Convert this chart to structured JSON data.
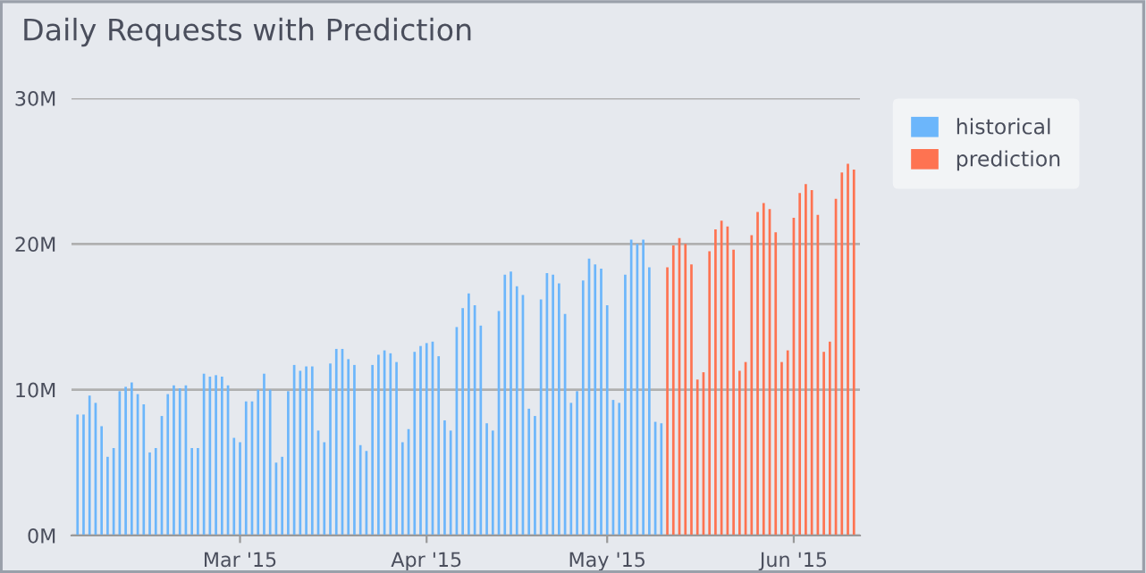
{
  "chart_data": {
    "type": "bar",
    "title": "Daily Requests with Prediction",
    "series": [
      {
        "name": "historical",
        "color": "#6cb6fb",
        "x": [
          "2015-02-02",
          "2015-02-03",
          "2015-02-04",
          "2015-02-05",
          "2015-02-06",
          "2015-02-07",
          "2015-02-08",
          "2015-02-09",
          "2015-02-10",
          "2015-02-11",
          "2015-02-12",
          "2015-02-13",
          "2015-02-14",
          "2015-02-15",
          "2015-02-16",
          "2015-02-17",
          "2015-02-18",
          "2015-02-19",
          "2015-02-20",
          "2015-02-21",
          "2015-02-22",
          "2015-02-23",
          "2015-02-24",
          "2015-02-25",
          "2015-02-26",
          "2015-02-27",
          "2015-02-28",
          "2015-03-01",
          "2015-03-02",
          "2015-03-03",
          "2015-03-04",
          "2015-03-05",
          "2015-03-06",
          "2015-03-07",
          "2015-03-08",
          "2015-03-09",
          "2015-03-10",
          "2015-03-11",
          "2015-03-12",
          "2015-03-13",
          "2015-03-14",
          "2015-03-15",
          "2015-03-16",
          "2015-03-17",
          "2015-03-18",
          "2015-03-19",
          "2015-03-20",
          "2015-03-21",
          "2015-03-22",
          "2015-03-23",
          "2015-03-24",
          "2015-03-25",
          "2015-03-26",
          "2015-03-27",
          "2015-03-28",
          "2015-03-29",
          "2015-03-30",
          "2015-03-31",
          "2015-04-01",
          "2015-04-02",
          "2015-04-03",
          "2015-04-04",
          "2015-04-05",
          "2015-04-06",
          "2015-04-07",
          "2015-04-08",
          "2015-04-09",
          "2015-04-10",
          "2015-04-11",
          "2015-04-12",
          "2015-04-13",
          "2015-04-14",
          "2015-04-15",
          "2015-04-16",
          "2015-04-17",
          "2015-04-18",
          "2015-04-19",
          "2015-04-20",
          "2015-04-21",
          "2015-04-22",
          "2015-04-23",
          "2015-04-24",
          "2015-04-25",
          "2015-04-26",
          "2015-04-27",
          "2015-04-28",
          "2015-04-29",
          "2015-04-30",
          "2015-05-01",
          "2015-05-02",
          "2015-05-03",
          "2015-05-04",
          "2015-05-05",
          "2015-05-06",
          "2015-05-07",
          "2015-05-08",
          "2015-05-09",
          "2015-05-10"
        ],
        "values": [
          8.3,
          8.3,
          9.6,
          9.1,
          7.5,
          5.4,
          6.0,
          9.9,
          10.2,
          10.5,
          9.7,
          9.0,
          5.7,
          6.0,
          8.2,
          9.7,
          10.3,
          10.1,
          10.3,
          6.0,
          6.0,
          11.1,
          10.9,
          11.0,
          10.9,
          10.3,
          6.7,
          6.4,
          9.2,
          9.2,
          10.0,
          11.1,
          10.0,
          5.0,
          5.4,
          9.9,
          11.7,
          11.3,
          11.6,
          11.6,
          7.2,
          6.4,
          11.8,
          12.8,
          12.8,
          12.1,
          11.7,
          6.2,
          5.8,
          11.7,
          12.4,
          12.7,
          12.5,
          11.9,
          6.4,
          7.3,
          12.6,
          13.0,
          13.2,
          13.3,
          12.3,
          7.9,
          7.2,
          14.3,
          15.6,
          16.6,
          15.8,
          14.4,
          7.7,
          7.2,
          15.4,
          17.9,
          18.1,
          17.1,
          16.5,
          8.7,
          8.2,
          16.2,
          18.0,
          17.9,
          17.3,
          15.2,
          9.1,
          9.9,
          17.5,
          19.0,
          18.6,
          18.3,
          15.8,
          9.3,
          9.1,
          17.9,
          20.3,
          20.0,
          20.3,
          18.4,
          7.8,
          7.7
        ]
      },
      {
        "name": "prediction",
        "color": "#fe7351",
        "x": [
          "2015-05-11",
          "2015-05-12",
          "2015-05-13",
          "2015-05-14",
          "2015-05-15",
          "2015-05-16",
          "2015-05-17",
          "2015-05-18",
          "2015-05-19",
          "2015-05-20",
          "2015-05-21",
          "2015-05-22",
          "2015-05-23",
          "2015-05-24",
          "2015-05-25",
          "2015-05-26",
          "2015-05-27",
          "2015-05-28",
          "2015-05-29",
          "2015-05-30",
          "2015-05-31",
          "2015-06-01",
          "2015-06-02",
          "2015-06-03",
          "2015-06-04",
          "2015-06-05",
          "2015-06-06",
          "2015-06-07",
          "2015-06-08",
          "2015-06-09",
          "2015-06-10",
          "2015-06-11"
        ],
        "values": [
          18.4,
          19.9,
          20.4,
          20.0,
          18.6,
          10.7,
          11.2,
          19.5,
          21.0,
          21.6,
          21.2,
          19.6,
          11.3,
          11.9,
          20.6,
          22.2,
          22.8,
          22.4,
          20.8,
          11.9,
          12.7,
          21.8,
          23.5,
          24.1,
          23.7,
          22.0,
          12.6,
          13.3,
          23.1,
          24.9,
          25.5,
          25.1
        ]
      }
    ],
    "xlim": [
      "2015-02-01",
      "2015-06-12"
    ],
    "xticks": [
      {
        "value": "2015-03-01",
        "label": "Mar '15"
      },
      {
        "value": "2015-04-01",
        "label": "Apr '15"
      },
      {
        "value": "2015-05-01",
        "label": "May '15"
      },
      {
        "value": "2015-06-01",
        "label": "Jun '15"
      }
    ],
    "ylim": [
      0,
      30
    ],
    "yticks": [
      {
        "value": 0,
        "label": "0M"
      },
      {
        "value": 10,
        "label": "10M"
      },
      {
        "value": 20,
        "label": "20M"
      },
      {
        "value": 30,
        "label": "30M"
      }
    ],
    "grid": "y",
    "legend": "top right"
  }
}
